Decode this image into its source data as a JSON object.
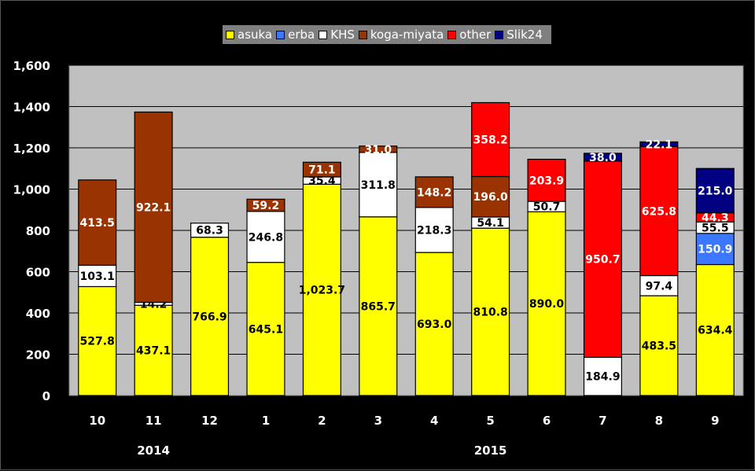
{
  "chart_data": {
    "type": "bar",
    "stacked": true,
    "categories": [
      "10",
      "11",
      "12",
      "1",
      "2",
      "3",
      "4",
      "5",
      "6",
      "7",
      "8",
      "9"
    ],
    "year_labels": [
      {
        "label": "2014",
        "span": [
          "10",
          "11",
          "12"
        ]
      },
      {
        "label": "2015",
        "span": [
          "1",
          "2",
          "3",
          "4",
          "5",
          "6",
          "7",
          "8",
          "9"
        ]
      }
    ],
    "series": [
      {
        "name": "asuka",
        "color": "#ffff00",
        "values": [
          527.8,
          437.1,
          766.9,
          645.1,
          1023.7,
          865.7,
          693.0,
          810.8,
          890.0,
          0,
          483.5,
          634.4
        ],
        "labels": [
          "527.8",
          "437.1",
          "766.9",
          "645.1",
          "1,023.7",
          "865.7",
          "693.0",
          "810.8",
          "890.0",
          "",
          "483.5",
          "634.4"
        ]
      },
      {
        "name": "erba",
        "color": "#3c78ff",
        "values": [
          0,
          0,
          0,
          0,
          0,
          0,
          0,
          0,
          0,
          0,
          0,
          150.9
        ],
        "labels": [
          "",
          "",
          "",
          "",
          "",
          "",
          "",
          "",
          "",
          "",
          "",
          "150.9"
        ]
      },
      {
        "name": "KHS",
        "color": "#ffffff",
        "values": [
          103.1,
          14.2,
          68.3,
          246.8,
          35.4,
          311.8,
          218.3,
          54.1,
          50.7,
          184.9,
          97.4,
          55.5
        ],
        "labels": [
          "103.1",
          "14.2",
          "68.3",
          "246.8",
          "35.4",
          "311.8",
          "218.3",
          "54.1",
          "50.7",
          "184.9",
          "97.4",
          "55.5"
        ]
      },
      {
        "name": "koga-miyata",
        "color": "#993300",
        "values": [
          413.5,
          922.1,
          0,
          59.2,
          71.1,
          31.0,
          148.2,
          196.0,
          0,
          0,
          0,
          0
        ],
        "labels": [
          "413.5",
          "922.1",
          "",
          "59.2",
          "71.1",
          "31.0",
          "148.2",
          "196.0",
          "",
          "",
          "",
          ""
        ]
      },
      {
        "name": "other",
        "color": "#ff0000",
        "values": [
          0,
          0,
          0,
          0,
          0,
          0,
          0,
          358.2,
          203.9,
          950.7,
          625.8,
          44.3
        ],
        "labels": [
          "",
          "",
          "",
          "",
          "",
          "",
          "",
          "358.2",
          "203.9",
          "950.7",
          "625.8",
          "44.3"
        ]
      },
      {
        "name": "Slik24",
        "color": "#000080",
        "values": [
          0,
          0,
          0,
          0,
          0,
          0,
          0,
          0,
          0,
          38.0,
          22.1,
          215.0
        ],
        "labels": [
          "",
          "",
          "",
          "",
          "",
          "",
          "",
          "",
          "",
          "38.0",
          "22.1",
          "215.0"
        ]
      }
    ],
    "ylim": [
      0,
      1600
    ],
    "yticks": [
      0,
      200,
      400,
      600,
      800,
      1000,
      1200,
      1400,
      1600
    ],
    "ytick_labels": [
      "0",
      "200",
      "400",
      "600",
      "800",
      "1,000",
      "1,200",
      "1,400",
      "1,600"
    ],
    "grid": true,
    "legend": "top-center",
    "plot_background": "#c0c0c0"
  }
}
